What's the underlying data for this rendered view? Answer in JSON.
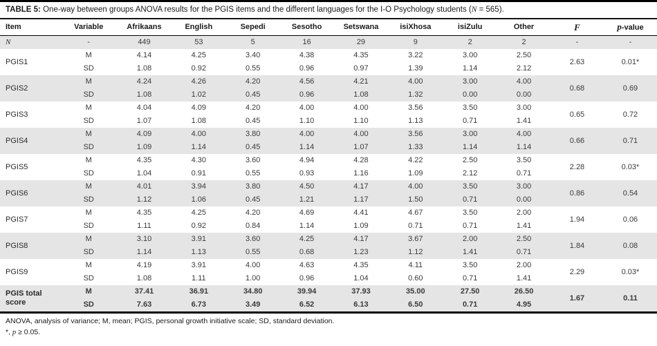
{
  "title": {
    "label": "TABLE 5:",
    "before_n": " One-way between groups ANOVA results for the PGIS items and the different languages for the I-O Psychology students (",
    "n": "N",
    "after_n": " = 565)."
  },
  "table": {
    "columns": [
      "Item",
      "Variable",
      "Afrikaans",
      "English",
      "Sepedi",
      "Sesotho",
      "Setswana",
      "isiXhosa",
      "isiZulu",
      "Other",
      "F",
      "p-value"
    ],
    "variable_labels": {
      "m": "M",
      "sd": "SD"
    },
    "n_row": {
      "item": "N",
      "variable": "-",
      "values": [
        "449",
        "53",
        "5",
        "16",
        "29",
        "9",
        "2",
        "2"
      ],
      "f": "-",
      "p": "-"
    },
    "rows": [
      {
        "item": "PGIS1",
        "m": [
          "4.14",
          "4.25",
          "3.40",
          "4.38",
          "4.35",
          "3.22",
          "3.00",
          "2.50"
        ],
        "sd": [
          "1.08",
          "0.92",
          "0.55",
          "0.96",
          "0.97",
          "1.39",
          "1.14",
          "2.12"
        ],
        "f": "2.63",
        "p": "0.01*"
      },
      {
        "item": "PGIS2",
        "m": [
          "4.24",
          "4.26",
          "4.20",
          "4.56",
          "4.21",
          "4.00",
          "3.00",
          "4.00"
        ],
        "sd": [
          "1.08",
          "1.02",
          "0.45",
          "0.96",
          "1.08",
          "1.32",
          "0.00",
          "0.00"
        ],
        "f": "0.68",
        "p": "0.69"
      },
      {
        "item": "PGIS3",
        "m": [
          "4.04",
          "4.09",
          "4.20",
          "4.00",
          "4.00",
          "3.56",
          "3.50",
          "3.00"
        ],
        "sd": [
          "1.07",
          "1.08",
          "0.45",
          "1.10",
          "1.10",
          "1.13",
          "0.71",
          "1.41"
        ],
        "f": "0.65",
        "p": "0.72"
      },
      {
        "item": "PGIS4",
        "m": [
          "4.09",
          "4.00",
          "3.80",
          "4.00",
          "4.00",
          "3.56",
          "3.00",
          "4.00"
        ],
        "sd": [
          "1.09",
          "1.14",
          "0.45",
          "1.14",
          "1.07",
          "1.33",
          "1.14",
          "1.14"
        ],
        "f": "0.66",
        "p": "0.71"
      },
      {
        "item": "PGIS5",
        "m": [
          "4.35",
          "4.30",
          "3.60",
          "4.94",
          "4.28",
          "4.22",
          "2.50",
          "3.50"
        ],
        "sd": [
          "1.04",
          "0.91",
          "0.55",
          "0.93",
          "1.16",
          "1.09",
          "2.12",
          "0.71"
        ],
        "f": "2.28",
        "p": "0.03*"
      },
      {
        "item": "PGIS6",
        "m": [
          "4.01",
          "3.94",
          "3.80",
          "4.50",
          "4.17",
          "4.00",
          "3.50",
          "3.00"
        ],
        "sd": [
          "1.12",
          "1.06",
          "0.45",
          "1.21",
          "1.17",
          "1.50",
          "0.71",
          "0.00"
        ],
        "f": "0.86",
        "p": "0.54"
      },
      {
        "item": "PGIS7",
        "m": [
          "4.35",
          "4.25",
          "4.20",
          "4.69",
          "4.41",
          "4.67",
          "3.50",
          "2.00"
        ],
        "sd": [
          "1.11",
          "0.92",
          "0.84",
          "1.14",
          "1.09",
          "0.71",
          "0.71",
          "1.41"
        ],
        "f": "1.94",
        "p": "0.06"
      },
      {
        "item": "PGIS8",
        "m": [
          "3.10",
          "3.91",
          "3.60",
          "4.25",
          "4.17",
          "3.67",
          "2.00",
          "2.50"
        ],
        "sd": [
          "1.14",
          "1.13",
          "0.55",
          "0.68",
          "1.23",
          "1.12",
          "1.41",
          "0.71"
        ],
        "f": "1.84",
        "p": "0.08"
      },
      {
        "item": "PGIS9",
        "m": [
          "4.19",
          "3.91",
          "4.00",
          "4.63",
          "4.35",
          "4.11",
          "3.50",
          "2.00"
        ],
        "sd": [
          "1.08",
          "1.11",
          "1.00",
          "0.96",
          "1.04",
          "0.60",
          "0.71",
          "1.41"
        ],
        "f": "2.29",
        "p": "0.03*"
      },
      {
        "item": "PGIS total score",
        "bold": true,
        "m": [
          "37.41",
          "36.91",
          "34.80",
          "39.94",
          "37.93",
          "35.00",
          "27.50",
          "26.50"
        ],
        "sd": [
          "7.63",
          "6.73",
          "3.49",
          "6.52",
          "6.13",
          "6.50",
          "0.71",
          "4.95"
        ],
        "f": "1.67",
        "p": "0.11"
      }
    ]
  },
  "footnotes": {
    "abbreviations": "ANOVA, analysis of variance; M, mean; PGIS, personal growth initiative scale; SD, standard deviation.",
    "significance_prefix": "*, ",
    "significance_italic": "p",
    "significance_suffix": " ≥ 0.05."
  },
  "colors": {
    "shaded_row": "#e5e5e5",
    "border": "#000000",
    "text": "#333333"
  }
}
